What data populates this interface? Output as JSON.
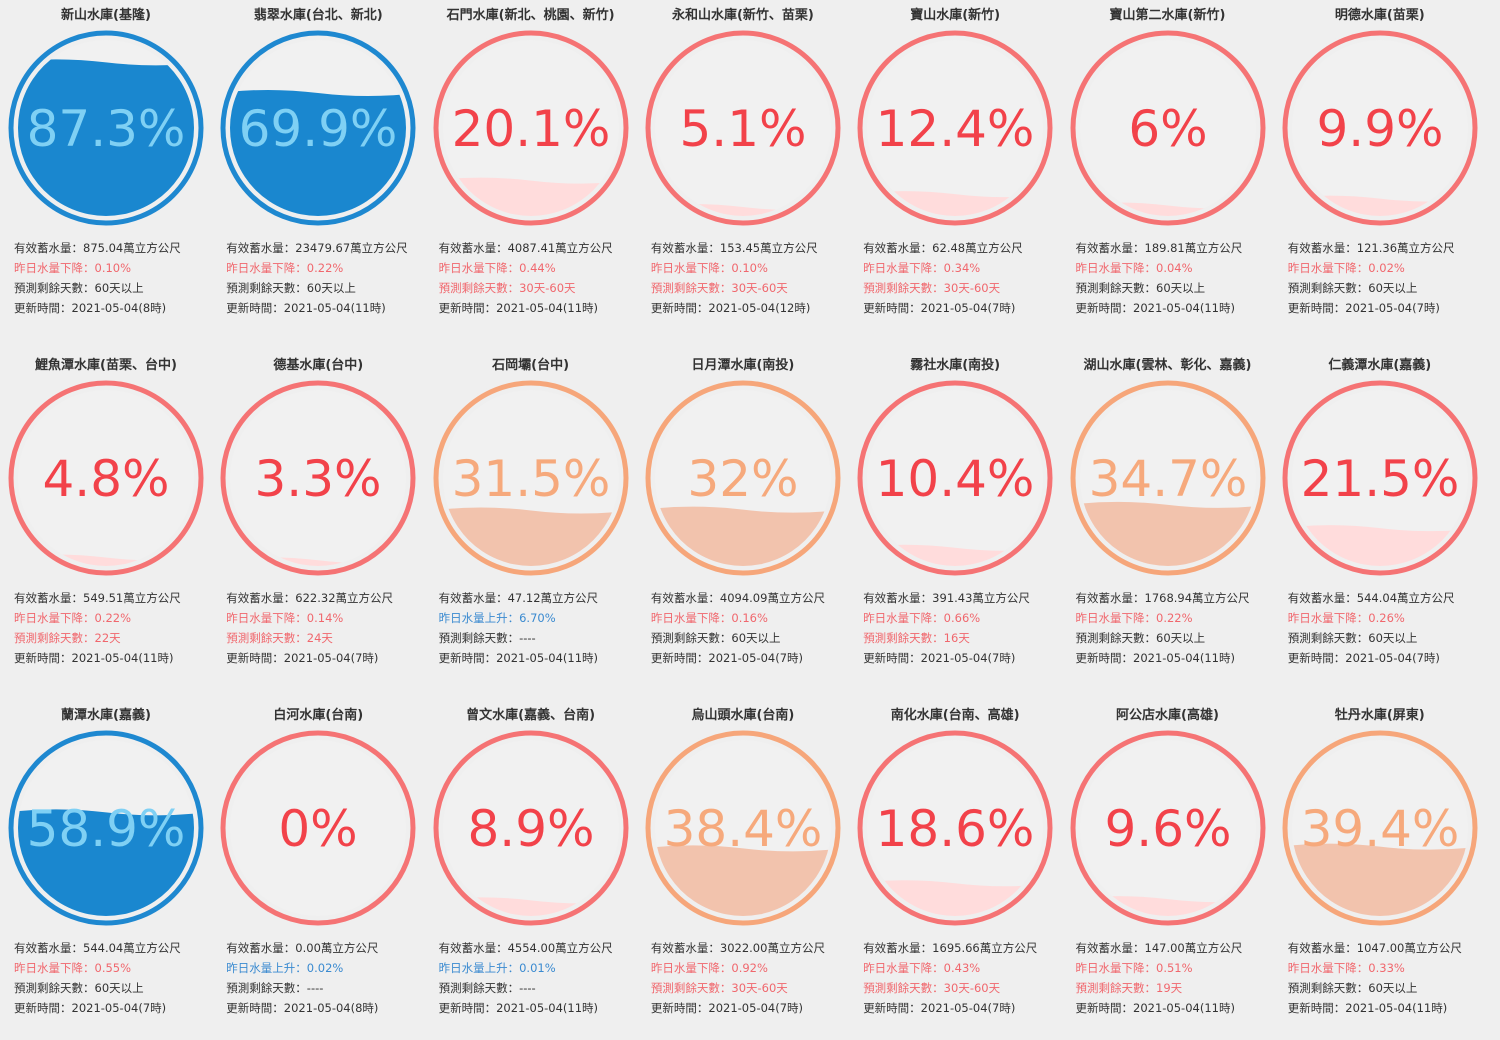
{
  "labels": {
    "storage": "有效蓄水量：",
    "unit": "萬立方公尺",
    "drop": "昨日水量下降：",
    "rise": "昨日水量上升：",
    "days": "預測剩餘天數：",
    "updated": "更新時間："
  },
  "colors": {
    "blue_ring": "#1e88d0",
    "blue_fill": "#1a87cf",
    "blue_text": "#7fd0f4",
    "red_ring": "#f57374",
    "red_fill": "#ffdcdc",
    "red_text": "#f2424a",
    "orange_ring": "#f6a67a",
    "orange_fill": "#f2c3ad",
    "orange_text": "#f6a97c"
  },
  "reservoirs": [
    {
      "name": "新山水庫(基隆)",
      "percent": "87.3%",
      "level": 0.873,
      "status": "blue",
      "storage": "875.04",
      "change_type": "drop",
      "change": "0.10%",
      "days": "60天以上",
      "days_warn": false,
      "updated": "2021-05-04(8時)"
    },
    {
      "name": "翡翠水庫(台北、新北)",
      "percent": "69.9%",
      "level": 0.699,
      "status": "blue",
      "storage": "23479.67",
      "change_type": "drop",
      "change": "0.22%",
      "days": "60天以上",
      "days_warn": false,
      "updated": "2021-05-04(11時)"
    },
    {
      "name": "石門水庫(新北、桃園、新竹)",
      "percent": "20.1%",
      "level": 0.201,
      "status": "red",
      "storage": "4087.41",
      "change_type": "drop",
      "change": "0.44%",
      "days": "30天-60天",
      "days_warn": true,
      "updated": "2021-05-04(11時)"
    },
    {
      "name": "永和山水庫(新竹、苗栗)",
      "percent": "5.1%",
      "level": 0.051,
      "status": "red",
      "storage": "153.45",
      "change_type": "drop",
      "change": "0.10%",
      "days": "30天-60天",
      "days_warn": true,
      "updated": "2021-05-04(12時)"
    },
    {
      "name": "寶山水庫(新竹)",
      "percent": "12.4%",
      "level": 0.124,
      "status": "red",
      "storage": "62.48",
      "change_type": "drop",
      "change": "0.34%",
      "days": "30天-60天",
      "days_warn": true,
      "updated": "2021-05-04(7時)"
    },
    {
      "name": "寶山第二水庫(新竹)",
      "percent": "6%",
      "level": 0.06,
      "status": "red",
      "storage": "189.81",
      "change_type": "drop",
      "change": "0.04%",
      "days": "60天以上",
      "days_warn": false,
      "updated": "2021-05-04(11時)"
    },
    {
      "name": "明德水庫(苗栗)",
      "percent": "9.9%",
      "level": 0.099,
      "status": "red",
      "storage": "121.36",
      "change_type": "drop",
      "change": "0.02%",
      "days": "60天以上",
      "days_warn": false,
      "updated": "2021-05-04(7時)"
    },
    {
      "name": "鯉魚潭水庫(苗栗、台中)",
      "percent": "4.8%",
      "level": 0.048,
      "status": "red",
      "storage": "549.51",
      "change_type": "drop",
      "change": "0.22%",
      "days": "22天",
      "days_warn": true,
      "updated": "2021-05-04(11時)"
    },
    {
      "name": "德基水庫(台中)",
      "percent": "3.3%",
      "level": 0.033,
      "status": "red",
      "storage": "622.32",
      "change_type": "drop",
      "change": "0.14%",
      "days": "24天",
      "days_warn": true,
      "updated": "2021-05-04(7時)"
    },
    {
      "name": "石岡壩(台中)",
      "percent": "31.5%",
      "level": 0.315,
      "status": "orange",
      "storage": "47.12",
      "change_type": "rise",
      "change": "6.70%",
      "days": "----",
      "days_warn": false,
      "updated": "2021-05-04(11時)"
    },
    {
      "name": "日月潭水庫(南投)",
      "percent": "32%",
      "level": 0.32,
      "status": "orange",
      "storage": "4094.09",
      "change_type": "drop",
      "change": "0.16%",
      "days": "60天以上",
      "days_warn": false,
      "updated": "2021-05-04(7時)"
    },
    {
      "name": "霧社水庫(南投)",
      "percent": "10.4%",
      "level": 0.104,
      "status": "red",
      "storage": "391.43",
      "change_type": "drop",
      "change": "0.66%",
      "days": "16天",
      "days_warn": true,
      "updated": "2021-05-04(7時)"
    },
    {
      "name": "湖山水庫(雲林、彰化、嘉義)",
      "percent": "34.7%",
      "level": 0.347,
      "status": "orange",
      "storage": "1768.94",
      "change_type": "drop",
      "change": "0.22%",
      "days": "60天以上",
      "days_warn": false,
      "updated": "2021-05-04(11時)"
    },
    {
      "name": "仁義潭水庫(嘉義)",
      "percent": "21.5%",
      "level": 0.215,
      "status": "red",
      "storage": "544.04",
      "change_type": "drop",
      "change": "0.26%",
      "days": "60天以上",
      "days_warn": false,
      "updated": "2021-05-04(7時)"
    },
    {
      "name": "蘭潭水庫(嘉義)",
      "percent": "58.9%",
      "level": 0.589,
      "status": "blue",
      "storage": "544.04",
      "change_type": "drop",
      "change": "0.55%",
      "days": "60天以上",
      "days_warn": false,
      "updated": "2021-05-04(7時)"
    },
    {
      "name": "白河水庫(台南)",
      "percent": "0%",
      "level": 0.0,
      "status": "red",
      "storage": "0.00",
      "change_type": "rise",
      "change": "0.02%",
      "days": "----",
      "days_warn": false,
      "updated": "2021-05-04(8時)"
    },
    {
      "name": "曾文水庫(嘉義、台南)",
      "percent": "8.9%",
      "level": 0.089,
      "status": "red",
      "storage": "4554.00",
      "change_type": "rise",
      "change": "0.01%",
      "days": "----",
      "days_warn": false,
      "updated": "2021-05-04(11時)"
    },
    {
      "name": "烏山頭水庫(台南)",
      "percent": "38.4%",
      "level": 0.384,
      "status": "orange",
      "storage": "3022.00",
      "change_type": "drop",
      "change": "0.92%",
      "days": "30天-60天",
      "days_warn": true,
      "updated": "2021-05-04(7時)"
    },
    {
      "name": "南化水庫(台南、高雄)",
      "percent": "18.6%",
      "level": 0.186,
      "status": "red",
      "storage": "1695.66",
      "change_type": "drop",
      "change": "0.43%",
      "days": "30天-60天",
      "days_warn": true,
      "updated": "2021-05-04(7時)"
    },
    {
      "name": "阿公店水庫(高雄)",
      "percent": "9.6%",
      "level": 0.096,
      "status": "red",
      "storage": "147.00",
      "change_type": "drop",
      "change": "0.51%",
      "days": "19天",
      "days_warn": true,
      "updated": "2021-05-04(11時)"
    },
    {
      "name": "牡丹水庫(屏東)",
      "percent": "39.4%",
      "level": 0.394,
      "status": "orange",
      "storage": "1047.00",
      "change_type": "drop",
      "change": "0.33%",
      "days": "60天以上",
      "days_warn": false,
      "updated": "2021-05-04(11時)"
    }
  ]
}
